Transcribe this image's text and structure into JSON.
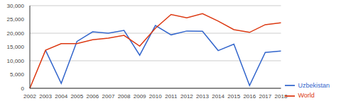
{
  "chart_data": {
    "type": "line",
    "categories": [
      "2002",
      "2003",
      "2004",
      "2005",
      "2006",
      "2007",
      "2008",
      "2009",
      "2010",
      "2011",
      "2012",
      "2013",
      "2014",
      "2015",
      "2016",
      "2017",
      "2018"
    ],
    "series": [
      {
        "name": "Uzbekistan",
        "color": "#3366cc",
        "values": [
          null,
          13800,
          1800,
          17000,
          20500,
          20000,
          21000,
          12000,
          22800,
          19400,
          20800,
          20700,
          13700,
          16000,
          1000,
          13000,
          13500
        ]
      },
      {
        "name": "World",
        "color": "#dc3912",
        "values": [
          0,
          13800,
          16200,
          16200,
          17600,
          18200,
          19200,
          15300,
          21800,
          26800,
          25600,
          27100,
          24400,
          21300,
          20300,
          23100,
          23800
        ]
      }
    ],
    "ylim": [
      0,
      30000
    ],
    "yticks": [
      0,
      {
        "value": 5000,
        "label": "5,000"
      },
      {
        "value": 10000,
        "label": "10,000"
      },
      {
        "value": 15000,
        "label": "15,000"
      },
      {
        "value": 20000,
        "label": "20,000"
      },
      {
        "value": 25000,
        "label": "25,000"
      },
      {
        "value": 30000,
        "label": "30,000"
      }
    ],
    "grid": true,
    "legend": "bottom-right"
  }
}
